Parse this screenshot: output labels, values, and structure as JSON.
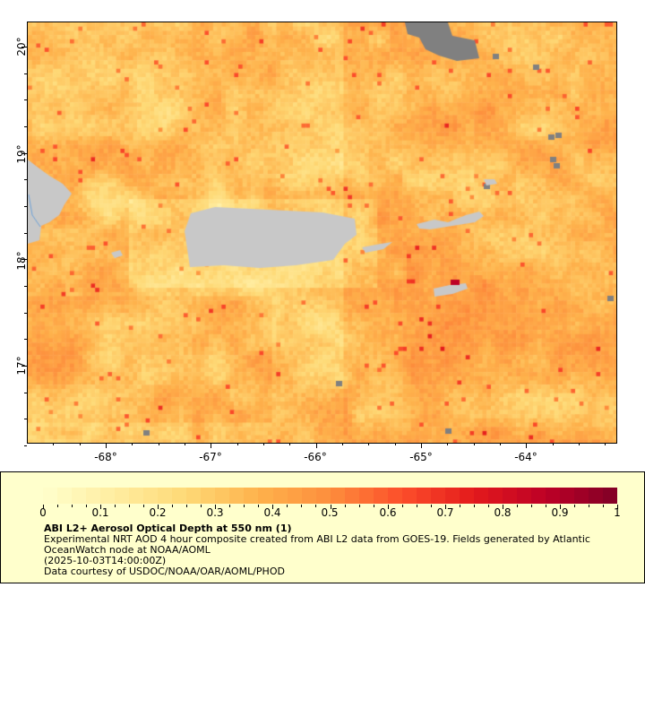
{
  "map": {
    "lon_range": [
      -68.74,
      -63.14
    ],
    "lat_range": [
      16.25,
      20.23
    ],
    "lon_ticks": [
      "-68°",
      "-67°",
      "-66°",
      "-65°",
      "-64°"
    ],
    "lat_ticks": [
      "20°",
      "19°",
      "18°",
      "17°"
    ],
    "land_color": "#c8c8c8",
    "missing_color": "#808080"
  },
  "legend": {
    "colorbar_range": [
      0,
      1
    ],
    "colorbar_ticks": [
      "0",
      "0.1",
      "0.2",
      "0.3",
      "0.4",
      "0.5",
      "0.6",
      "0.7",
      "0.8",
      "0.9",
      "1"
    ],
    "palette": [
      "#ffffcc",
      "#ffeda0",
      "#fed976",
      "#feb24c",
      "#fd8d3c",
      "#fc4e2a",
      "#e31a1c",
      "#bd0026",
      "#800026"
    ],
    "title": "ABI L2+ Aerosol Optical Depth at 550 nm (1)",
    "description": "Experimental NRT AOD 4 hour composite created from ABI L2 data from GOES-19. Fields generated by Atlantic OceanWatch node at NOAA/AOML",
    "time": "(2025-10-03T14:00:00Z)",
    "credit": "Data courtesy of USDOC/NOAA/OAR/AOML/PHOD"
  }
}
